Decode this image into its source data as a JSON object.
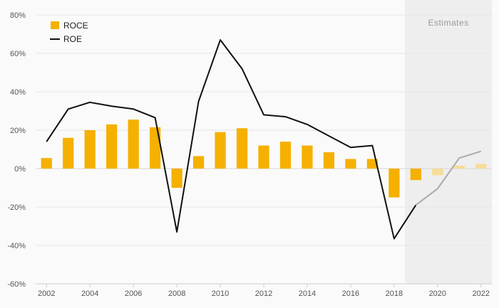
{
  "chart_data": {
    "type": "bar",
    "title": "",
    "xlabel": "",
    "ylabel": "",
    "ylim": [
      -60,
      80
    ],
    "y_ticks": [
      -60,
      -40,
      -20,
      0,
      20,
      40,
      60,
      80
    ],
    "y_tick_labels": [
      "-60%",
      "-40%",
      "-20%",
      "0%",
      "20%",
      "40%",
      "60%",
      "80%"
    ],
    "x_ticks": [
      2002,
      2004,
      2006,
      2008,
      2010,
      2012,
      2014,
      2016,
      2018,
      2020,
      2022
    ],
    "x_tick_labels": [
      "2002",
      "2004",
      "2006",
      "2008",
      "2010",
      "2012",
      "2014",
      "2016",
      "2018",
      "2020",
      "2022"
    ],
    "categories": [
      2002,
      2003,
      2004,
      2005,
      2006,
      2007,
      2008,
      2009,
      2010,
      2011,
      2012,
      2013,
      2014,
      2015,
      2016,
      2017,
      2018,
      2019,
      2020,
      2021,
      2022
    ],
    "grid": true,
    "legend_position": "top-left",
    "estimates": {
      "label": "Estimates",
      "from": 2019,
      "to": 2022
    },
    "series": [
      {
        "name": "ROCE",
        "kind": "bar",
        "color": "#f5b000",
        "estimate_color": "#f7dc9a",
        "values": [
          5.5,
          16,
          20,
          23,
          25.5,
          21.5,
          -10,
          6.5,
          19,
          21,
          12,
          14,
          12,
          8.5,
          5,
          5,
          -15,
          -6,
          -3.5,
          1.5,
          2.5
        ]
      },
      {
        "name": "ROE",
        "kind": "line",
        "color": "#111111",
        "estimate_color": "#aaaaaa",
        "values": [
          14,
          31,
          34.5,
          32.5,
          31,
          26.5,
          -33,
          35,
          67,
          52,
          28,
          27,
          23,
          17,
          11,
          12,
          -36.5,
          -19,
          -10.5,
          5.5,
          9
        ]
      }
    ]
  }
}
